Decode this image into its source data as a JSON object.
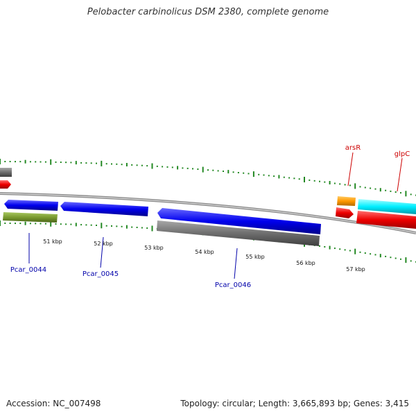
{
  "title": "Pelobacter carbinolicus DSM 2380, complete genome",
  "footer": {
    "accession": "Accession: NC_007498",
    "summary": "Topology: circular; Length: 3,665,893 bp; Genes: 3,415"
  },
  "scale_labels": [
    "51 kbp",
    "52 kbp",
    "53 kbp",
    "54 kbp",
    "55 kbp",
    "56 kbp",
    "57 kbp"
  ],
  "gene_labels": [
    {
      "id": "pcar0044",
      "text": "Pcar_0044",
      "color": "#0000aa"
    },
    {
      "id": "pcar0045",
      "text": "Pcar_0045",
      "color": "#0000aa"
    },
    {
      "id": "pcar0046",
      "text": "Pcar_0046",
      "color": "#0000aa"
    },
    {
      "id": "arsR",
      "text": "arsR",
      "color": "#cc0000"
    },
    {
      "id": "glpC",
      "text": "glpC",
      "color": "#cc0000"
    }
  ],
  "colors": {
    "blue": "#0000ee",
    "gray": "#6e6e6e",
    "red": "#ee0000",
    "orange": "#ff9900",
    "cyan": "#00eeff",
    "olive": "#7a9a30",
    "tick": "#228822",
    "backbone": "#909090"
  }
}
